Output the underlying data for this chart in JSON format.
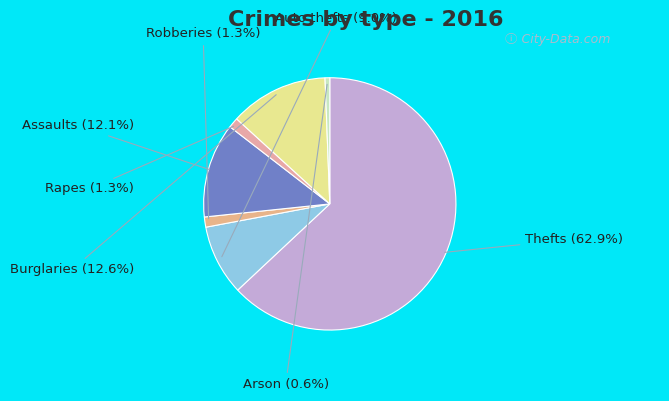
{
  "title": "Crimes by type - 2016",
  "labels": [
    "Thefts",
    "Auto thefts",
    "Robberies",
    "Assaults",
    "Rapes",
    "Burglaries",
    "Arson"
  ],
  "values": [
    62.9,
    9.0,
    1.3,
    12.1,
    1.3,
    12.6,
    0.6
  ],
  "colors": [
    "#c4aad8",
    "#8ecae6",
    "#e8b48a",
    "#7080c8",
    "#e8a8a8",
    "#e8e890",
    "#c8e8c0"
  ],
  "label_texts": [
    "Thefts (62.9%)",
    "Auto thefts (9.0%)",
    "Robberies (1.3%)",
    "Assaults (12.1%)",
    "Rapes (1.3%)",
    "Burglaries (12.6%)",
    "Arson (0.6%)"
  ],
  "border_color": "#00e8f8",
  "bg_color_tl": "#c8e8d8",
  "bg_color_br": "#dceef0",
  "title_fontsize": 16,
  "label_fontsize": 9.5,
  "title_color": "#333333",
  "label_color": "#222222",
  "watermark_color": "#aabbcc",
  "startangle": 90
}
